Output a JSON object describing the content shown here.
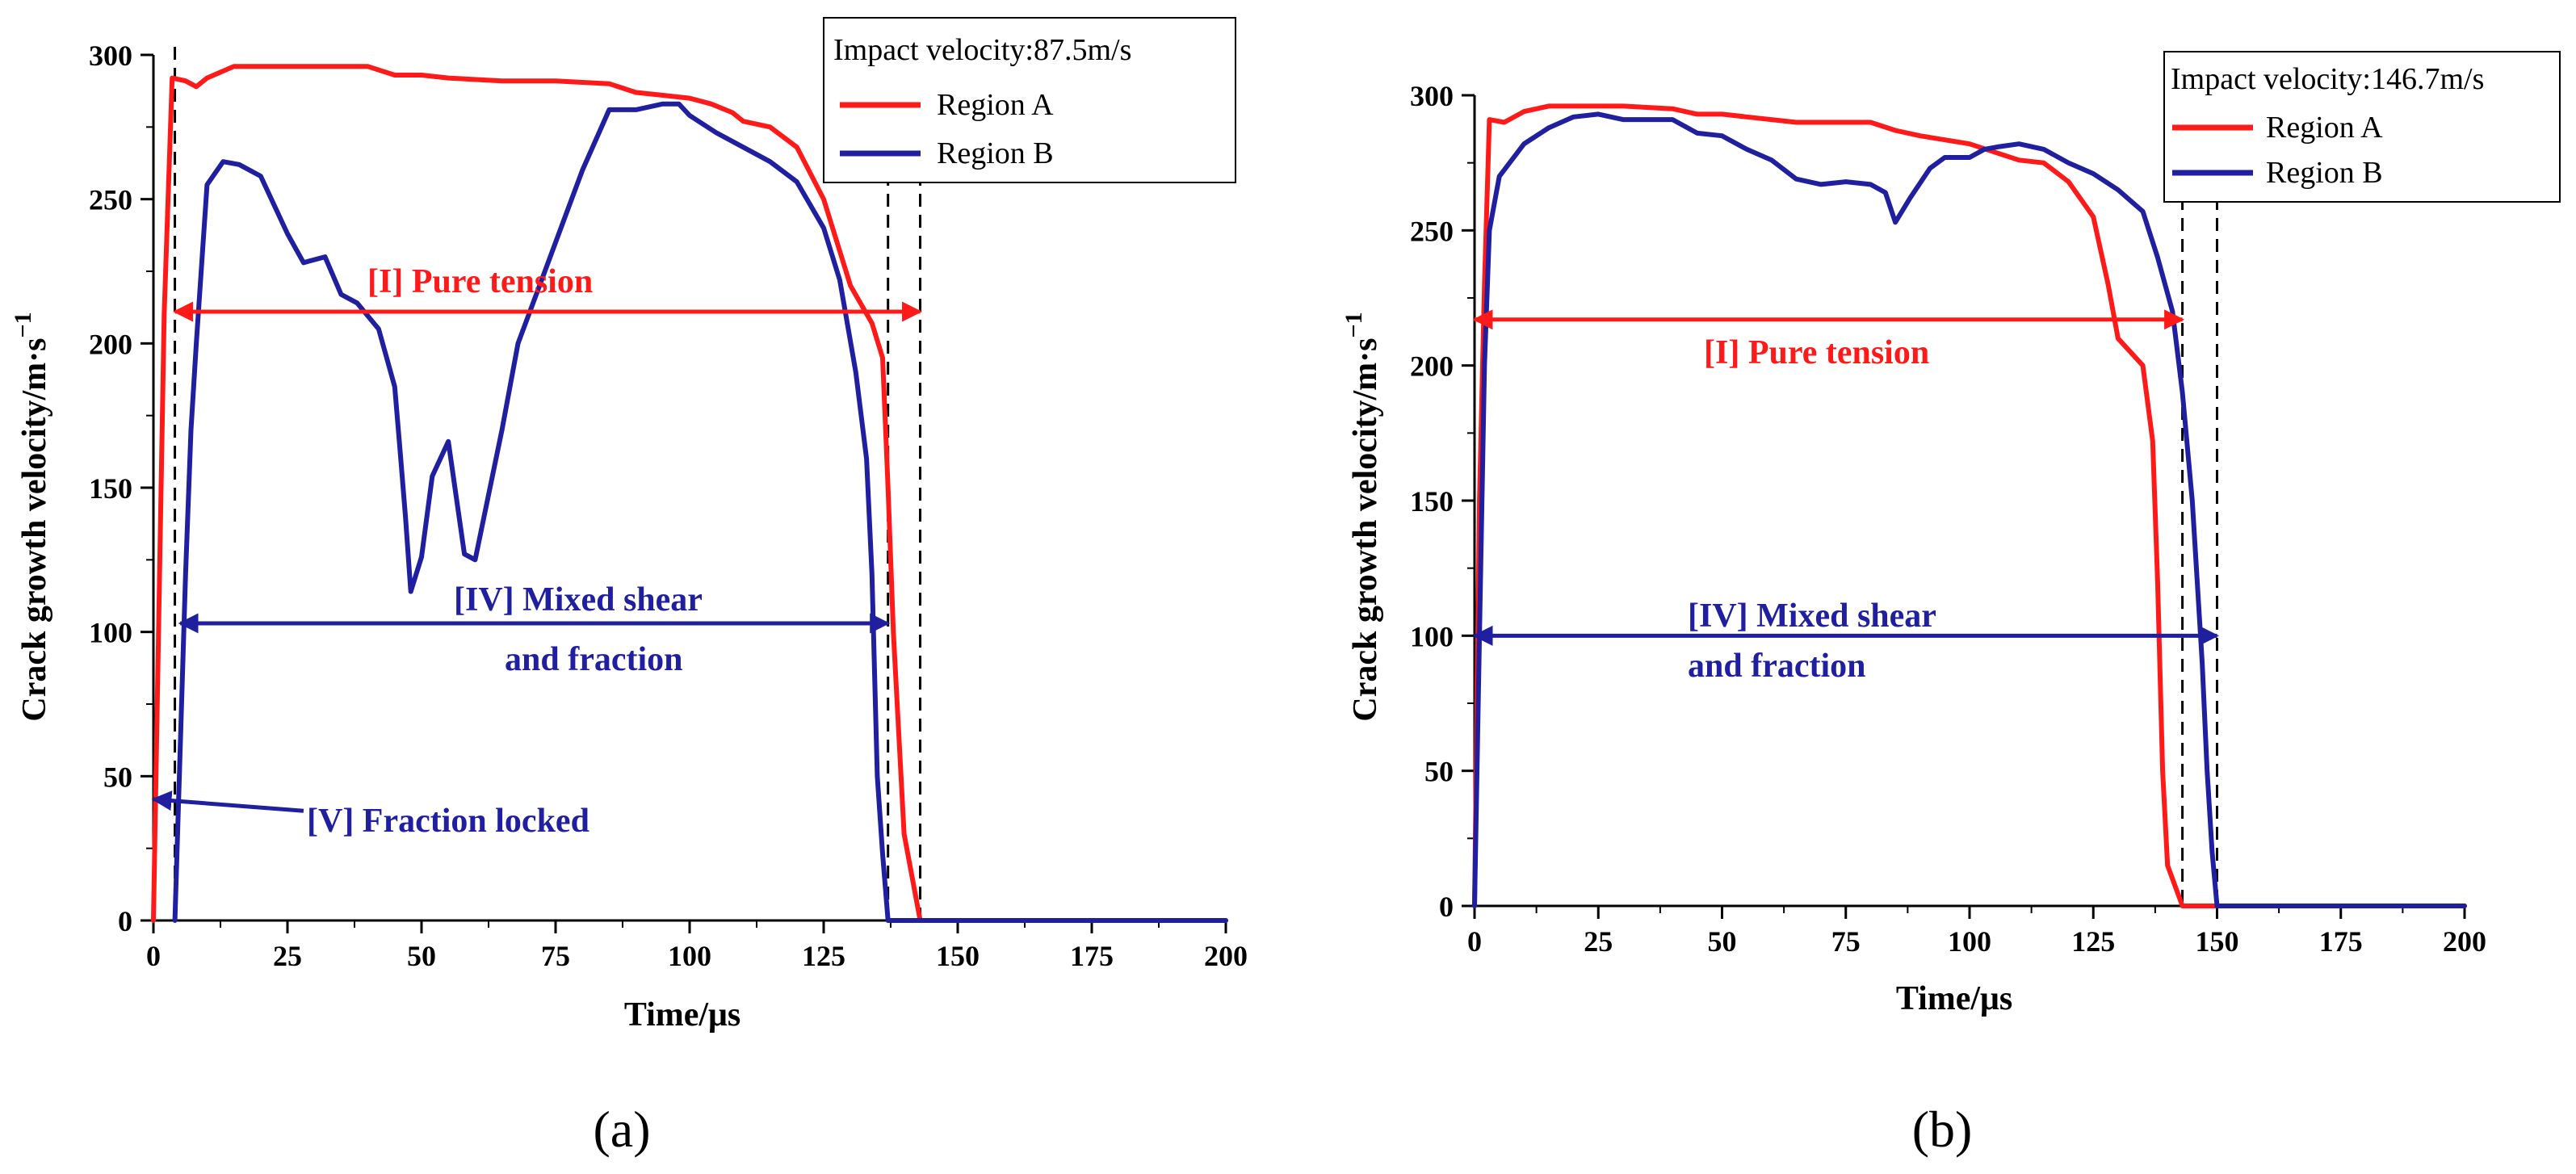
{
  "chart_data": [
    {
      "type": "line",
      "panel_label": "(a)",
      "xlabel": "Time/μs",
      "ylabel": "Crack growth velocity/m·s",
      "ylabel_sup": "−1",
      "xlim": [
        0,
        200
      ],
      "ylim": [
        0,
        300
      ],
      "xticks": [
        "0",
        "25",
        "50",
        "75",
        "100",
        "125",
        "150",
        "175",
        "200"
      ],
      "yticks": [
        "0",
        "50",
        "100",
        "150",
        "200",
        "250",
        "300"
      ],
      "legend_title": "Impact velocity:87.5m/s",
      "colors": {
        "region_a": "#ff1a1a",
        "region_b": "#1f1fa0"
      },
      "series": [
        {
          "name": "Region A",
          "color": "#ff1a1a",
          "points": [
            [
              0,
              0
            ],
            [
              2,
              210
            ],
            [
              3.5,
              292
            ],
            [
              6,
              291
            ],
            [
              8,
              289
            ],
            [
              10,
              292
            ],
            [
              15,
              296
            ],
            [
              20,
              296
            ],
            [
              30,
              296
            ],
            [
              40,
              296
            ],
            [
              45,
              293
            ],
            [
              50,
              293
            ],
            [
              55,
              292
            ],
            [
              65,
              291
            ],
            [
              75,
              291
            ],
            [
              85,
              290
            ],
            [
              90,
              287
            ],
            [
              95,
              286
            ],
            [
              100,
              285
            ],
            [
              104,
              283
            ],
            [
              108,
              280
            ],
            [
              110,
              277
            ],
            [
              115,
              275
            ],
            [
              120,
              268
            ],
            [
              125,
              250
            ],
            [
              130,
              220
            ],
            [
              134,
              207
            ],
            [
              136,
              195
            ],
            [
              137,
              150
            ],
            [
              138,
              100
            ],
            [
              140,
              30
            ],
            [
              143,
              0
            ],
            [
              200,
              0
            ]
          ]
        },
        {
          "name": "Region B",
          "color": "#1f1fa0",
          "points": [
            [
              4,
              0
            ],
            [
              5,
              60
            ],
            [
              6,
              120
            ],
            [
              7,
              170
            ],
            [
              8,
              200
            ],
            [
              10,
              255
            ],
            [
              13,
              263
            ],
            [
              16,
              262
            ],
            [
              20,
              258
            ],
            [
              25,
              238
            ],
            [
              28,
              228
            ],
            [
              32,
              230
            ],
            [
              35,
              217
            ],
            [
              38,
              214
            ],
            [
              42,
              205
            ],
            [
              45,
              185
            ],
            [
              46,
              163
            ],
            [
              47,
              140
            ],
            [
              48,
              114
            ],
            [
              50,
              126
            ],
            [
              52,
              154
            ],
            [
              55,
              166
            ],
            [
              58,
              127
            ],
            [
              60,
              125
            ],
            [
              65,
              170
            ],
            [
              68,
              200
            ],
            [
              72,
              220
            ],
            [
              76,
              240
            ],
            [
              80,
              260
            ],
            [
              85,
              281
            ],
            [
              90,
              281
            ],
            [
              95,
              283
            ],
            [
              98,
              283
            ],
            [
              100,
              279
            ],
            [
              105,
              273
            ],
            [
              110,
              268
            ],
            [
              115,
              263
            ],
            [
              120,
              256
            ],
            [
              125,
              240
            ],
            [
              128,
              222
            ],
            [
              131,
              190
            ],
            [
              133,
              160
            ],
            [
              134,
              120
            ],
            [
              135,
              50
            ],
            [
              136,
              23
            ],
            [
              137,
              0
            ],
            [
              200,
              0
            ]
          ]
        }
      ],
      "vlines_x": [
        4,
        137,
        143
      ],
      "annotations": [
        {
          "text": "[I] Pure tension",
          "color": "#ff1a1a"
        },
        {
          "text": "[IV] Mixed shear",
          "color": "#1f1fa0"
        },
        {
          "text": "and fraction",
          "color": "#1f1fa0"
        },
        {
          "text": "[V] Fraction locked",
          "color": "#1f1fa0"
        }
      ],
      "arrows": [
        {
          "color": "#ff1a1a",
          "from": [
            4,
            211
          ],
          "to": [
            143,
            211
          ]
        },
        {
          "color": "#1f1fa0",
          "from": [
            5,
            103
          ],
          "to": [
            137,
            103
          ]
        },
        {
          "color": "#1f1fa0",
          "from": [
            28,
            38
          ],
          "to": [
            0,
            42
          ]
        }
      ]
    },
    {
      "type": "line",
      "panel_label": "(b)",
      "xlabel": "Time/μs",
      "ylabel": "Crack growth velocity/m·s",
      "ylabel_sup": "−1",
      "xlim": [
        0,
        200
      ],
      "ylim": [
        0,
        300
      ],
      "xticks": [
        "0",
        "25",
        "50",
        "75",
        "100",
        "125",
        "150",
        "175",
        "200"
      ],
      "yticks": [
        "0",
        "50",
        "100",
        "150",
        "200",
        "250",
        "300"
      ],
      "legend_title": "Impact velocity:146.7m/s",
      "colors": {
        "region_a": "#ff1a1a",
        "region_b": "#1f1fa0"
      },
      "series": [
        {
          "name": "Region A",
          "color": "#ff1a1a",
          "points": [
            [
              0,
              0
            ],
            [
              1,
              150
            ],
            [
              2,
              230
            ],
            [
              3,
              291
            ],
            [
              6,
              290
            ],
            [
              10,
              294
            ],
            [
              15,
              296
            ],
            [
              30,
              296
            ],
            [
              40,
              295
            ],
            [
              45,
              293
            ],
            [
              50,
              293
            ],
            [
              55,
              292
            ],
            [
              65,
              290
            ],
            [
              75,
              290
            ],
            [
              80,
              290
            ],
            [
              85,
              287
            ],
            [
              90,
              285
            ],
            [
              100,
              282
            ],
            [
              105,
              279
            ],
            [
              110,
              276
            ],
            [
              115,
              275
            ],
            [
              120,
              268
            ],
            [
              125,
              255
            ],
            [
              128,
              230
            ],
            [
              130,
              210
            ],
            [
              135,
              200
            ],
            [
              137,
              172
            ],
            [
              138,
              120
            ],
            [
              139,
              50
            ],
            [
              140,
              15
            ],
            [
              143,
              0
            ],
            [
              200,
              0
            ]
          ]
        },
        {
          "name": "Region B",
          "color": "#1f1fa0",
          "points": [
            [
              0,
              0
            ],
            [
              1,
              100
            ],
            [
              2,
              200
            ],
            [
              3,
              250
            ],
            [
              5,
              270
            ],
            [
              10,
              282
            ],
            [
              15,
              288
            ],
            [
              20,
              292
            ],
            [
              25,
              293
            ],
            [
              30,
              291
            ],
            [
              40,
              291
            ],
            [
              45,
              286
            ],
            [
              50,
              285
            ],
            [
              55,
              280
            ],
            [
              60,
              276
            ],
            [
              65,
              269
            ],
            [
              70,
              267
            ],
            [
              75,
              268
            ],
            [
              80,
              267
            ],
            [
              83,
              264
            ],
            [
              85,
              253
            ],
            [
              88,
              262
            ],
            [
              92,
              273
            ],
            [
              95,
              277
            ],
            [
              100,
              277
            ],
            [
              103,
              280
            ],
            [
              106,
              281
            ],
            [
              110,
              282
            ],
            [
              115,
              280
            ],
            [
              120,
              275
            ],
            [
              125,
              271
            ],
            [
              130,
              265
            ],
            [
              135,
              257
            ],
            [
              138,
              240
            ],
            [
              141,
              220
            ],
            [
              143,
              190
            ],
            [
              145,
              150
            ],
            [
              147,
              90
            ],
            [
              148,
              50
            ],
            [
              149,
              20
            ],
            [
              150,
              0
            ],
            [
              200,
              0
            ]
          ]
        }
      ],
      "vlines_x": [
        143,
        150
      ],
      "annotations": [
        {
          "text": "[I] Pure tension",
          "color": "#ff1a1a"
        },
        {
          "text": "[IV] Mixed shear",
          "color": "#1f1fa0"
        },
        {
          "text": "and fraction",
          "color": "#1f1fa0"
        }
      ],
      "arrows": [
        {
          "color": "#ff1a1a",
          "from": [
            0,
            217
          ],
          "to": [
            143,
            217
          ]
        },
        {
          "color": "#1f1fa0",
          "from": [
            0,
            100
          ],
          "to": [
            150,
            100
          ]
        }
      ]
    }
  ]
}
